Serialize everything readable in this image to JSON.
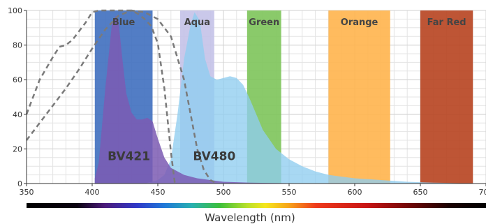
{
  "chart_data": {
    "type": "area",
    "xlabel": "Wavelength (nm)",
    "ylabel": "",
    "xlim": [
      350,
      700
    ],
    "ylim": [
      0,
      100
    ],
    "x_ticks": [
      350,
      400,
      450,
      500,
      550,
      600,
      650,
      700
    ],
    "y_ticks": [
      0,
      20,
      40,
      60,
      80,
      100
    ],
    "grid": true,
    "bands": [
      {
        "label": "Blue",
        "range": [
          402,
          446
        ],
        "color": "#3f6fbf"
      },
      {
        "label": "Aqua",
        "range": [
          467,
          493
        ],
        "color": "#c4c2e8"
      },
      {
        "label": "Green",
        "range": [
          518,
          544
        ],
        "color": "#7dc45a"
      },
      {
        "label": "Orange",
        "range": [
          580,
          627
        ],
        "color": "#ffb44c"
      },
      {
        "label": "Far Red",
        "range": [
          650,
          690
        ],
        "color": "#b7421f"
      }
    ],
    "series": [
      {
        "name": "BV480",
        "kind": "emission",
        "color": "#8fcdf0",
        "x": [
          402,
          410,
          420,
          430,
          440,
          450,
          455,
          460,
          465,
          470,
          475,
          478,
          482,
          486,
          490,
          495,
          500,
          505,
          510,
          515,
          520,
          525,
          530,
          540,
          550,
          560,
          570,
          580,
          590,
          600,
          620,
          640,
          660,
          680,
          700
        ],
        "y": [
          0,
          0,
          0,
          0,
          0,
          2,
          5,
          14,
          40,
          72,
          92,
          99,
          94,
          72,
          62,
          60,
          61,
          62,
          61,
          57,
          49,
          40,
          31,
          20,
          14,
          10,
          7,
          5,
          4,
          3,
          2,
          1,
          0.5,
          0.2,
          0
        ]
      },
      {
        "name": "BV421",
        "kind": "emission",
        "color": "#7b5bb3",
        "x": [
          402,
          405,
          410,
          415,
          418,
          420,
          423,
          426,
          430,
          434,
          438,
          442,
          446,
          450,
          455,
          460,
          470,
          480,
          490,
          500,
          520,
          550,
          580
        ],
        "y": [
          3,
          12,
          55,
          92,
          97,
          94,
          72,
          52,
          41,
          37,
          37,
          38,
          36,
          26,
          15,
          9,
          5,
          3,
          2,
          1,
          0.5,
          0.2,
          0
        ]
      },
      {
        "name": "BV421 excitation",
        "kind": "excitation",
        "color": "#7a7a7a",
        "x": [
          350,
          360,
          370,
          375,
          380,
          385,
          390,
          395,
          400,
          405,
          410,
          420,
          430,
          435,
          440,
          445,
          450,
          455,
          460,
          463
        ],
        "y": [
          40,
          60,
          73,
          79,
          80,
          83,
          88,
          93,
          99,
          100,
          100,
          100,
          100,
          98,
          95,
          91,
          81,
          55,
          18,
          0
        ]
      },
      {
        "name": "BV480 excitation",
        "kind": "excitation",
        "color": "#7a7a7a",
        "x": [
          350,
          360,
          370,
          380,
          390,
          400,
          410,
          420,
          430,
          440,
          450,
          460,
          470,
          475,
          480,
          485,
          490,
          495
        ],
        "y": [
          25,
          35,
          45,
          55,
          66,
          78,
          89,
          97,
          100,
          99,
          95,
          85,
          60,
          40,
          20,
          8,
          2,
          0
        ]
      }
    ],
    "labels": [
      "Blue",
      "Aqua",
      "Green",
      "Orange",
      "Far Red",
      "BV421",
      "BV480"
    ]
  }
}
